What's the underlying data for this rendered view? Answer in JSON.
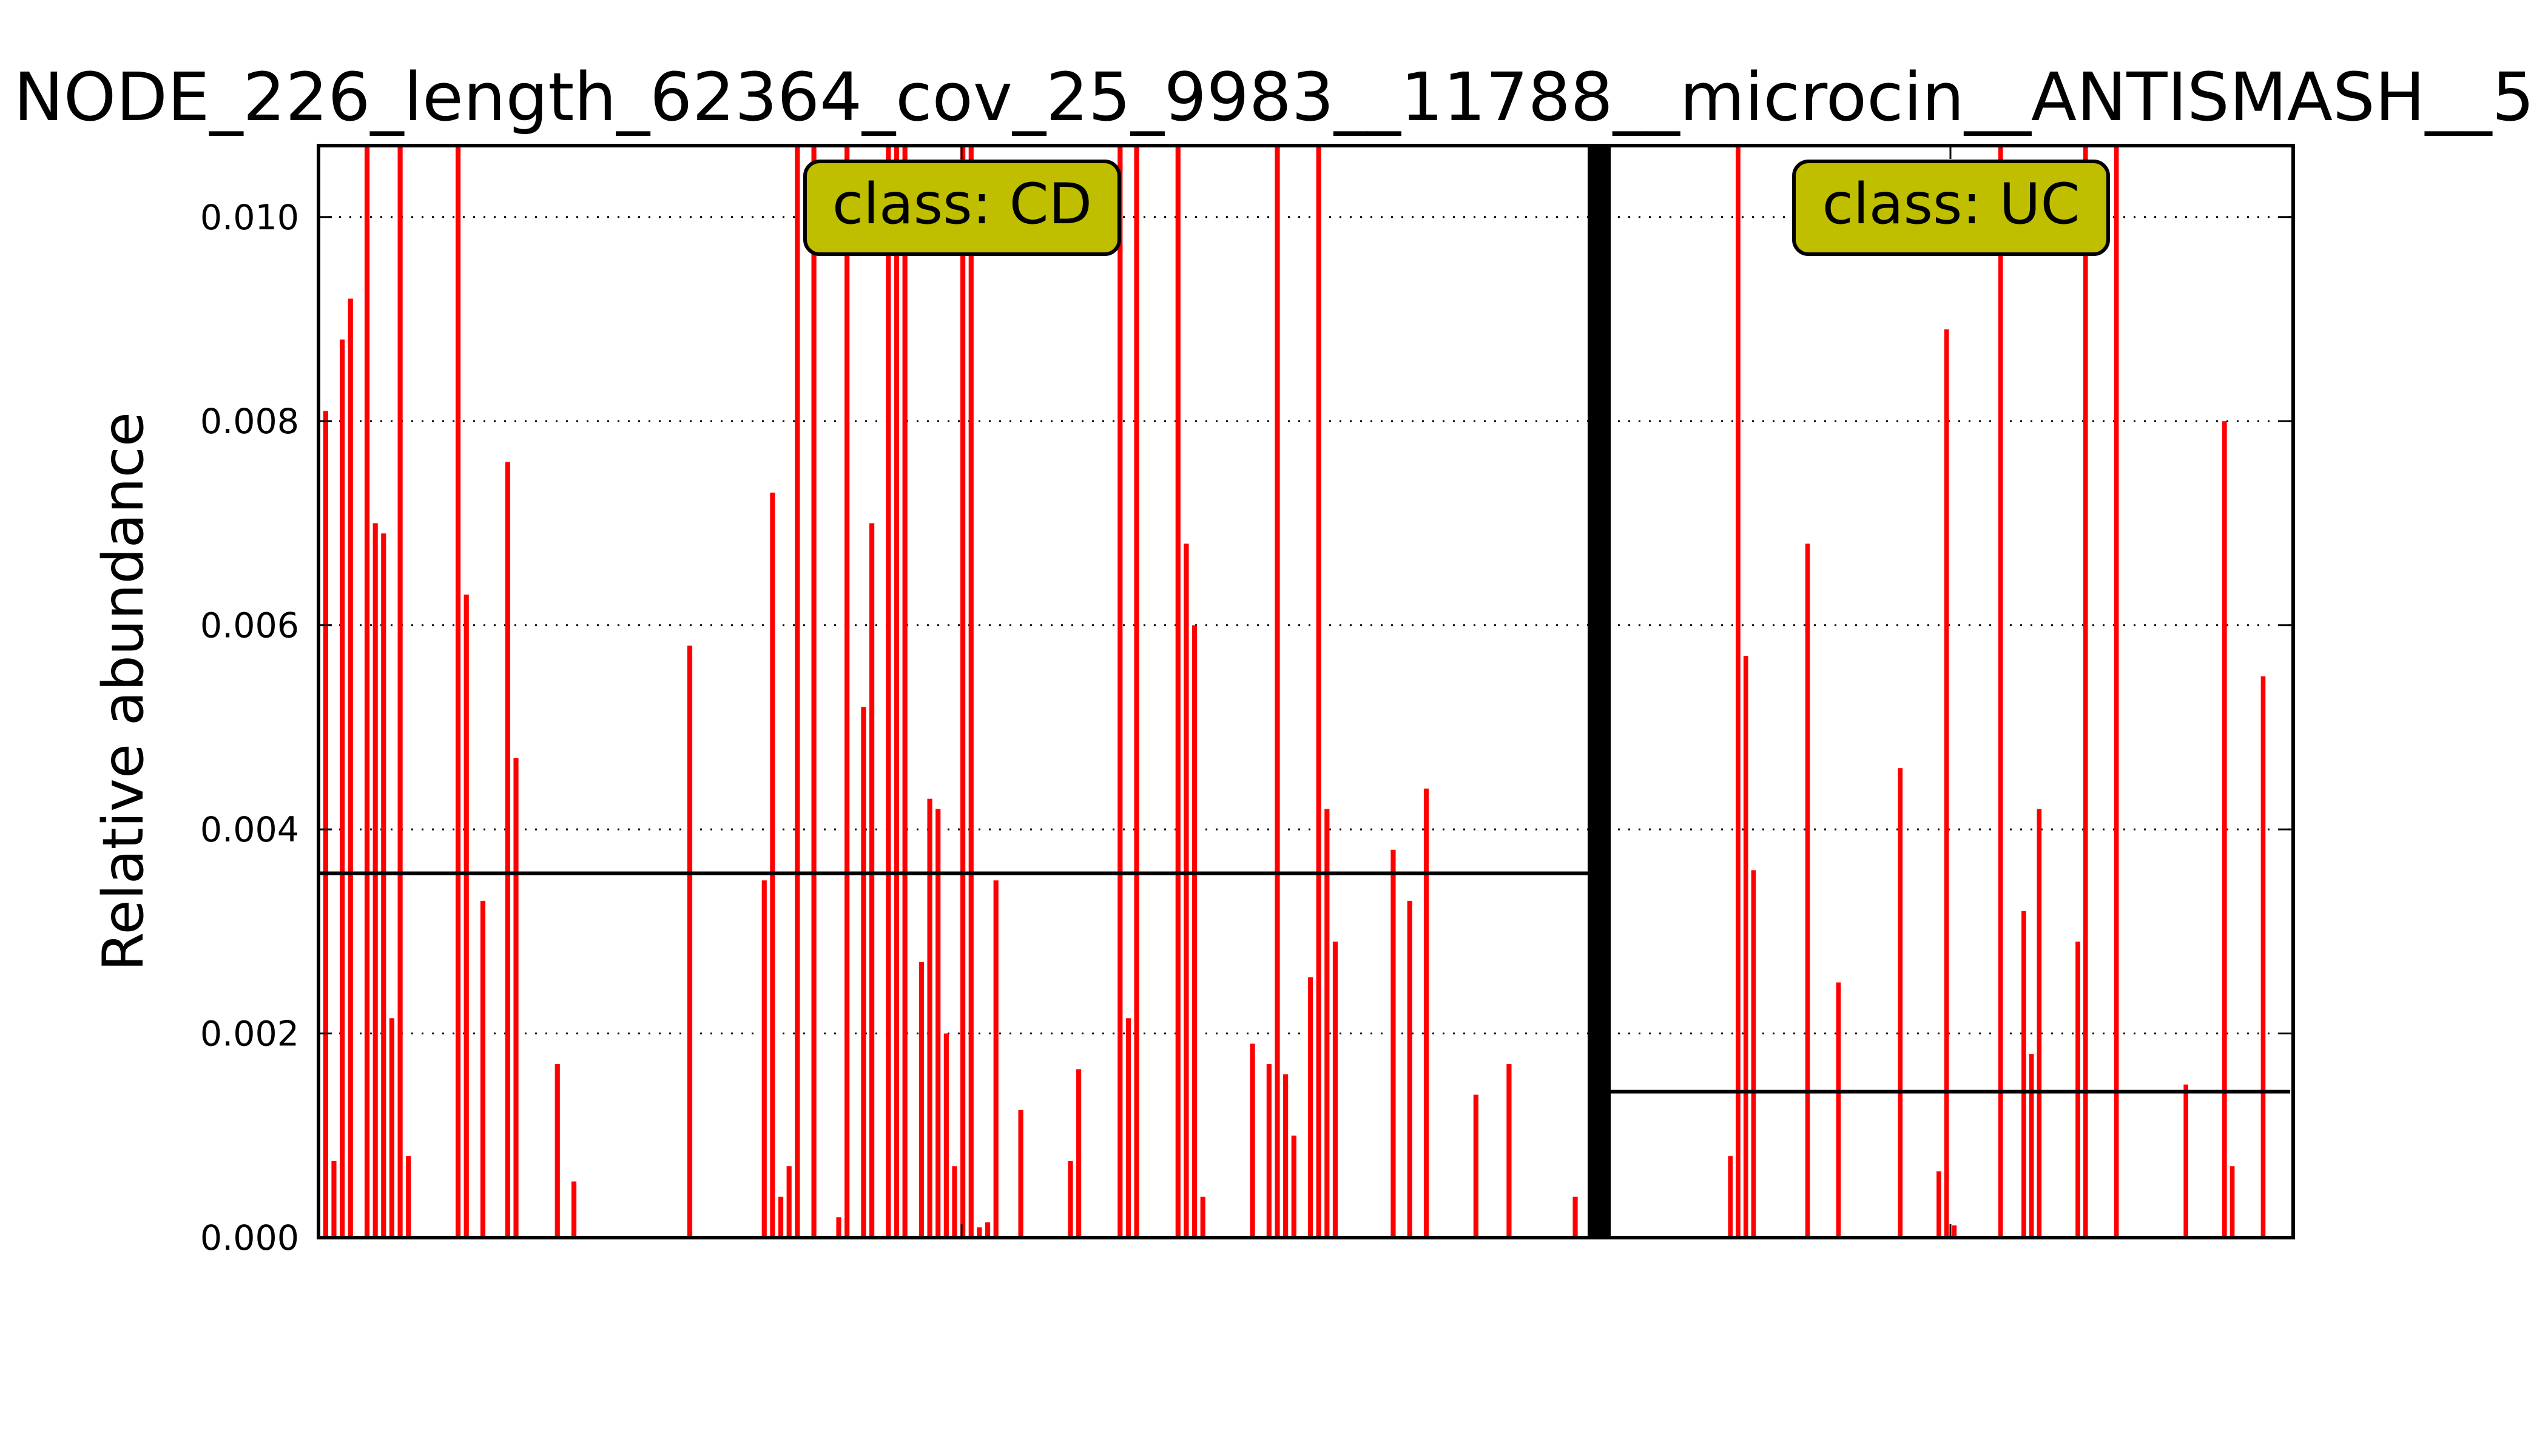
{
  "chart_data": {
    "type": "bar",
    "title": "NODE_226_length_62364_cov_25_9983__11788__microcin__ANTISMASH__5",
    "ylabel": "Relative abundance",
    "xlabel": "",
    "ylim": [
      0,
      0.0107
    ],
    "yticks": [
      "0.000",
      "0.002",
      "0.004",
      "0.006",
      "0.008",
      "0.010"
    ],
    "grid": "horizontal dotted",
    "bar_color": "#ff0000",
    "panels": [
      {
        "class_label": "class: CD",
        "mean_line": 0.00357,
        "values": [
          0.0081,
          0.00075,
          0.0088,
          0.0092,
          0,
          0.0107,
          0.007,
          0.0069,
          0.00215,
          0.0107,
          0.0008,
          0,
          0,
          0,
          0,
          0,
          0.0107,
          0.0063,
          0,
          0.0033,
          0,
          0,
          0.0076,
          0.0047,
          0,
          0,
          0,
          0,
          0.0017,
          0,
          0.00055,
          0,
          0,
          0,
          0,
          0,
          0,
          0,
          0,
          0,
          0,
          0,
          0,
          0,
          0.0058,
          0,
          0,
          0,
          0,
          0,
          0,
          0,
          0,
          0.0035,
          0.0073,
          0.0004,
          0.0007,
          0.0107,
          0,
          0.0107,
          0,
          0,
          0.0002,
          0.0107,
          0,
          0.0052,
          0.007,
          0,
          0.0107,
          0.0107,
          0.0107,
          0,
          0.0027,
          0.0043,
          0.0042,
          0.002,
          0.0007,
          0.0107,
          0.0107,
          0.0001,
          0.00015,
          0.0035,
          0,
          0,
          0.00125,
          0,
          0,
          0,
          0,
          0,
          0.00075,
          0.00165,
          0,
          0,
          0,
          0,
          0.0107,
          0.00215,
          0.0107,
          0,
          0,
          0,
          0,
          0.0107,
          0.0068,
          0.006,
          0.0004,
          0,
          0,
          0,
          0,
          0,
          0.0019,
          0,
          0.0017,
          0.0107,
          0.0016,
          0.001,
          0,
          0.00255,
          0.0107,
          0.0042,
          0.0029,
          0,
          0,
          0,
          0,
          0,
          0,
          0.0038,
          0,
          0.0033,
          0,
          0.0044,
          0,
          0,
          0,
          0,
          0,
          0.0014,
          0,
          0,
          0,
          0.0017,
          0,
          0,
          0,
          0,
          0,
          0,
          0,
          0.0004,
          0
        ]
      },
      {
        "class_label": "class: UC",
        "mean_line": 0.00143,
        "values": [
          0,
          0,
          0,
          0,
          0,
          0,
          0,
          0,
          0,
          0,
          0,
          0,
          0,
          0,
          0,
          0.0008,
          0.0107,
          0.0057,
          0.0036,
          0,
          0,
          0,
          0,
          0,
          0,
          0.0068,
          0,
          0,
          0,
          0.0025,
          0,
          0,
          0,
          0,
          0,
          0,
          0,
          0.0046,
          0,
          0,
          0,
          0,
          0.00065,
          0.0089,
          0.00012,
          0,
          0,
          0,
          0,
          0,
          0.0107,
          0,
          0,
          0.0032,
          0.0018,
          0.0042,
          0,
          0,
          0,
          0,
          0.0029,
          0.0107,
          0,
          0,
          0,
          0.0107,
          0,
          0,
          0,
          0,
          0,
          0,
          0,
          0,
          0.0015,
          0,
          0,
          0,
          0,
          0.008,
          0.0007,
          0,
          0,
          0,
          0.0055,
          0,
          0,
          0
        ]
      }
    ]
  }
}
